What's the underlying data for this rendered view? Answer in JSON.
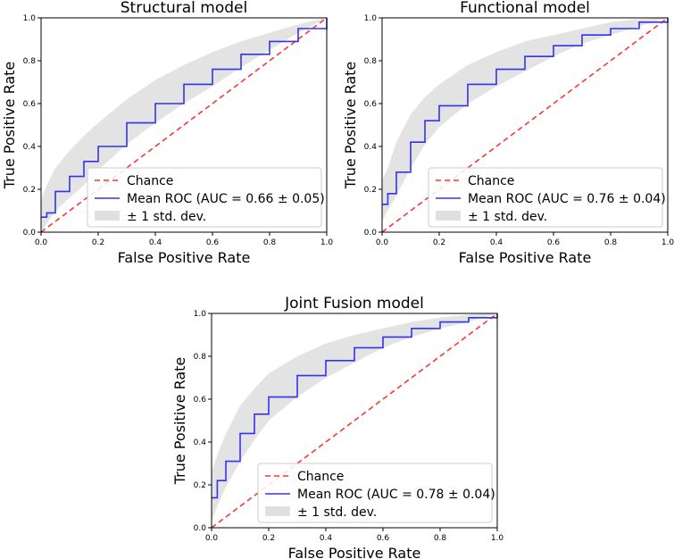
{
  "chart_data": [
    {
      "type": "line",
      "title": "Structural model",
      "xlabel": "False Positive Rate",
      "ylabel": "True Positive Rate",
      "xlim": [
        0,
        1
      ],
      "ylim": [
        0,
        1
      ],
      "x_ticks": [
        "0.0",
        "0.2",
        "0.4",
        "0.6",
        "0.8",
        "1.0"
      ],
      "y_ticks": [
        "0.0",
        "0.2",
        "0.4",
        "0.6",
        "0.8",
        "1.0"
      ],
      "legend": [
        "Chance",
        "Mean ROC (AUC = 0.66 ± 0.05)",
        "± 1 std. dev."
      ],
      "legend_position": "lower-right",
      "series": [
        {
          "name": "Chance",
          "color": "#ff3333",
          "style": "dashed",
          "x": [
            0,
            1
          ],
          "y": [
            0,
            1
          ]
        },
        {
          "name": "Mean ROC (AUC = 0.66 ± 0.05)",
          "color": "#3333ee",
          "x": [
            0,
            0.02,
            0.05,
            0.1,
            0.15,
            0.2,
            0.3,
            0.4,
            0.5,
            0.6,
            0.7,
            0.8,
            0.9,
            1.0
          ],
          "y": [
            0.07,
            0.09,
            0.19,
            0.26,
            0.33,
            0.4,
            0.51,
            0.6,
            0.69,
            0.76,
            0.83,
            0.89,
            0.95,
            1.0
          ]
        },
        {
          "name": "± 1 std. dev.",
          "color": "#cccccc",
          "x": [
            0,
            0.02,
            0.05,
            0.1,
            0.15,
            0.2,
            0.3,
            0.4,
            0.5,
            0.6,
            0.7,
            0.8,
            0.9,
            1.0
          ],
          "upper": [
            0.15,
            0.22,
            0.3,
            0.38,
            0.45,
            0.51,
            0.62,
            0.71,
            0.78,
            0.84,
            0.89,
            0.93,
            0.97,
            1.0
          ],
          "lower": [
            0.0,
            0.04,
            0.1,
            0.16,
            0.22,
            0.29,
            0.41,
            0.51,
            0.6,
            0.68,
            0.77,
            0.85,
            0.93,
            1.0
          ]
        }
      ]
    },
    {
      "type": "line",
      "title": "Functional model",
      "xlabel": "False Positive Rate",
      "ylabel": "True Positive Rate",
      "xlim": [
        0,
        1
      ],
      "ylim": [
        0,
        1
      ],
      "x_ticks": [
        "0.0",
        "0.2",
        "0.4",
        "0.6",
        "0.8",
        "1.0"
      ],
      "y_ticks": [
        "0.0",
        "0.2",
        "0.4",
        "0.6",
        "0.8",
        "1.0"
      ],
      "legend": [
        "Chance",
        "Mean ROC (AUC = 0.76 ± 0.04)",
        "± 1 std. dev."
      ],
      "legend_position": "lower-right",
      "series": [
        {
          "name": "Chance",
          "color": "#ff3333",
          "style": "dashed",
          "x": [
            0,
            1
          ],
          "y": [
            0,
            1
          ]
        },
        {
          "name": "Mean ROC (AUC = 0.76 ± 0.04)",
          "color": "#3333ee",
          "x": [
            0,
            0.02,
            0.05,
            0.1,
            0.15,
            0.2,
            0.3,
            0.4,
            0.5,
            0.6,
            0.7,
            0.8,
            0.9,
            1.0
          ],
          "y": [
            0.13,
            0.18,
            0.28,
            0.42,
            0.52,
            0.59,
            0.69,
            0.76,
            0.82,
            0.87,
            0.92,
            0.95,
            0.98,
            1.0
          ]
        },
        {
          "name": "± 1 std. dev.",
          "color": "#cccccc",
          "x": [
            0,
            0.02,
            0.05,
            0.1,
            0.15,
            0.2,
            0.3,
            0.4,
            0.5,
            0.6,
            0.7,
            0.8,
            0.9,
            1.0
          ],
          "upper": [
            0.24,
            0.3,
            0.42,
            0.55,
            0.63,
            0.69,
            0.78,
            0.84,
            0.89,
            0.92,
            0.95,
            0.98,
            0.995,
            1.0
          ],
          "lower": [
            0.05,
            0.1,
            0.17,
            0.3,
            0.41,
            0.49,
            0.6,
            0.68,
            0.75,
            0.82,
            0.88,
            0.92,
            0.96,
            1.0
          ]
        }
      ]
    },
    {
      "type": "line",
      "title": "Joint Fusion model",
      "xlabel": "False Positive Rate",
      "ylabel": "True Positive Rate",
      "xlim": [
        0,
        1
      ],
      "ylim": [
        0,
        1
      ],
      "x_ticks": [
        "0.0",
        "0.2",
        "0.4",
        "0.6",
        "0.8",
        "1.0"
      ],
      "y_ticks": [
        "0.0",
        "0.2",
        "0.4",
        "0.6",
        "0.8",
        "1.0"
      ],
      "legend": [
        "Chance",
        "Mean ROC (AUC = 0.78 ± 0.04)",
        "± 1 std. dev."
      ],
      "legend_position": "lower-right",
      "series": [
        {
          "name": "Chance",
          "color": "#ff3333",
          "style": "dashed",
          "x": [
            0,
            1
          ],
          "y": [
            0,
            1
          ]
        },
        {
          "name": "Mean ROC (AUC = 0.78 ± 0.04)",
          "color": "#3333ee",
          "x": [
            0,
            0.02,
            0.05,
            0.1,
            0.15,
            0.2,
            0.3,
            0.4,
            0.5,
            0.6,
            0.7,
            0.8,
            0.9,
            1.0
          ],
          "y": [
            0.14,
            0.22,
            0.31,
            0.44,
            0.53,
            0.61,
            0.71,
            0.78,
            0.84,
            0.89,
            0.93,
            0.96,
            0.98,
            1.0
          ]
        },
        {
          "name": "± 1 std. dev.",
          "color": "#cccccc",
          "x": [
            0,
            0.02,
            0.05,
            0.1,
            0.15,
            0.2,
            0.3,
            0.4,
            0.5,
            0.6,
            0.7,
            0.8,
            0.9,
            1.0
          ],
          "upper": [
            0.26,
            0.34,
            0.44,
            0.57,
            0.65,
            0.72,
            0.8,
            0.86,
            0.9,
            0.93,
            0.96,
            0.98,
            0.995,
            1.0
          ],
          "lower": [
            0.03,
            0.1,
            0.19,
            0.31,
            0.41,
            0.5,
            0.61,
            0.7,
            0.77,
            0.84,
            0.89,
            0.93,
            0.96,
            1.0
          ]
        }
      ]
    }
  ]
}
